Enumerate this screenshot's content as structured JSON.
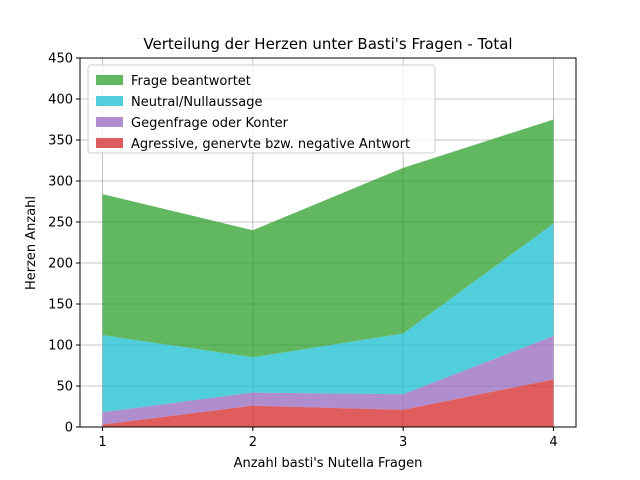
{
  "chart_data": {
    "type": "area",
    "stacked": true,
    "title": "Verteilung der Herzen unter Basti's Fragen - Total",
    "xlabel": "Anzahl basti's Nutella Fragen",
    "ylabel": "Herzen Anzahl",
    "x": [
      1,
      2,
      3,
      4
    ],
    "xlim": [
      0.85,
      4.15
    ],
    "ylim": [
      0,
      450
    ],
    "xticks": [
      1,
      2,
      3,
      4
    ],
    "yticks": [
      0,
      50,
      100,
      150,
      200,
      250,
      300,
      350,
      400,
      450
    ],
    "grid": true,
    "legend_position": "top-left",
    "series": [
      {
        "name": "Agressive, genervte bzw. negative Antwort",
        "color": "#d62728",
        "values": [
          3,
          26,
          21,
          58
        ]
      },
      {
        "name": "Gegenfrage oder Konter",
        "color": "#9467bd",
        "values": [
          15,
          16,
          19,
          53
        ]
      },
      {
        "name": "Neutral/Nullaussage",
        "color": "#17becf",
        "values": [
          94,
          43,
          74,
          137
        ]
      },
      {
        "name": "Frage beantwortet",
        "color": "#2ca02c",
        "values": [
          172,
          155,
          202,
          127
        ]
      }
    ],
    "legend_order": [
      "Frage beantwortet",
      "Neutral/Nullaussage",
      "Gegenfrage oder Konter",
      "Agressive, genervte bzw. negative Antwort"
    ]
  }
}
